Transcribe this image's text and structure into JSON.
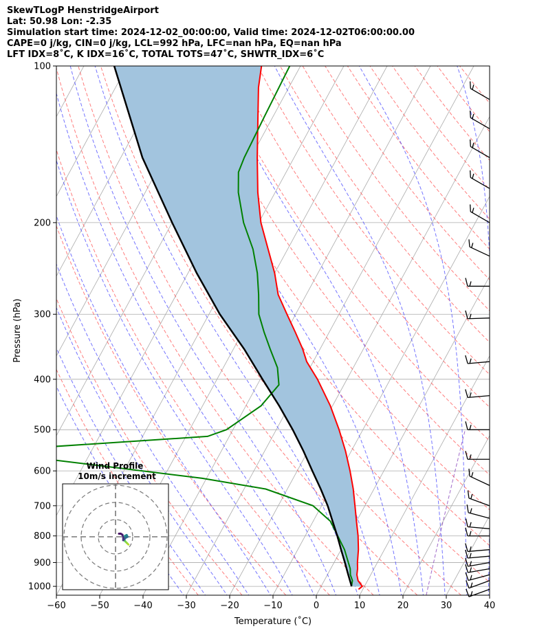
{
  "header": {
    "line1": "SkewTLogP HenstridgeAirport",
    "line2": "Lat: 50.98   Lon: -2.35",
    "line3": "Simulation start time: 2024-12-02_00:00:00, Valid time: 2024-12-02T06:00:00.00",
    "line4": "CAPE=0 j/kg, CIN=0 j/kg, LCL=992 hPa, LFC=nan hPa, EQ=nan hPa",
    "line5": "LFT IDX=8˚C, K IDX=16˚C, TOTAL TOTS=47˚C, SHWTR_IDX=6˚C"
  },
  "chart_data": {
    "type": "skew-t log-p",
    "xlabel": "Temperature (˚C)",
    "ylabel": "Pressure (hPa)",
    "xlim": [
      -60,
      40
    ],
    "ylim": [
      1040,
      100
    ],
    "x_ticks": [
      "−60",
      "−50",
      "−40",
      "−30",
      "−20",
      "−10",
      "0",
      "10",
      "20",
      "30",
      "40"
    ],
    "y_ticks": [
      100,
      200,
      300,
      400,
      500,
      600,
      700,
      800,
      900,
      1000
    ],
    "grid": true,
    "colors": {
      "temperature": "#ff0000",
      "dewpoint": "#008000",
      "parcel": "#000000",
      "cin_fill": "#a2c4de",
      "dry_adiabats": "#ff4444",
      "moist_adiabats": "#4444ff",
      "mixing_ratio": "#8844bb",
      "isotherms": "#aaaaaa"
    },
    "temperature": [
      {
        "p": 1013,
        "t": 9
      },
      {
        "p": 1000,
        "t": 9.5
      },
      {
        "p": 975,
        "t": 7.8
      },
      {
        "p": 950,
        "t": 6.8
      },
      {
        "p": 925,
        "t": 6.2
      },
      {
        "p": 900,
        "t": 5.4
      },
      {
        "p": 850,
        "t": 4.0
      },
      {
        "p": 800,
        "t": 2.2
      },
      {
        "p": 750,
        "t": 0.0
      },
      {
        "p": 700,
        "t": -2.3
      },
      {
        "p": 650,
        "t": -4.8
      },
      {
        "p": 600,
        "t": -7.8
      },
      {
        "p": 550,
        "t": -11.3
      },
      {
        "p": 500,
        "t": -15.5
      },
      {
        "p": 450,
        "t": -20.5
      },
      {
        "p": 400,
        "t": -26.8
      },
      {
        "p": 370,
        "t": -31.5
      },
      {
        "p": 350,
        "t": -34.0
      },
      {
        "p": 325,
        "t": -37.8
      },
      {
        "p": 300,
        "t": -42.0
      },
      {
        "p": 275,
        "t": -46.5
      },
      {
        "p": 250,
        "t": -50.0
      },
      {
        "p": 225,
        "t": -54.5
      },
      {
        "p": 200,
        "t": -59.5
      },
      {
        "p": 175,
        "t": -64.0
      },
      {
        "p": 150,
        "t": -68.5
      },
      {
        "p": 125,
        "t": -73.5
      },
      {
        "p": 110,
        "t": -77.0
      },
      {
        "p": 100,
        "t": -79.0
      }
    ],
    "dewpoint": [
      {
        "p": 1000,
        "t": 7.0
      },
      {
        "p": 975,
        "t": 6.5
      },
      {
        "p": 950,
        "t": 5.3
      },
      {
        "p": 925,
        "t": 4.5
      },
      {
        "p": 900,
        "t": 3.3
      },
      {
        "p": 850,
        "t": 0.8
      },
      {
        "p": 800,
        "t": -2.5
      },
      {
        "p": 750,
        "t": -6.0
      },
      {
        "p": 700,
        "t": -12.0
      },
      {
        "p": 650,
        "t": -25.0
      },
      {
        "p": 620,
        "t": -41.0
      },
      {
        "p": 550,
        "t": -95.0
      },
      {
        "p": 515,
        "t": -45.0
      },
      {
        "p": 500,
        "t": -41.5
      },
      {
        "p": 450,
        "t": -36.5
      },
      {
        "p": 410,
        "t": -35.0
      },
      {
        "p": 380,
        "t": -37.5
      },
      {
        "p": 350,
        "t": -41.5
      },
      {
        "p": 325,
        "t": -45.0
      },
      {
        "p": 300,
        "t": -48.5
      },
      {
        "p": 275,
        "t": -51.0
      },
      {
        "p": 250,
        "t": -54.0
      },
      {
        "p": 225,
        "t": -58.0
      },
      {
        "p": 200,
        "t": -63.5
      },
      {
        "p": 175,
        "t": -68.5
      },
      {
        "p": 160,
        "t": -71.0
      },
      {
        "p": 150,
        "t": -71.5
      },
      {
        "p": 125,
        "t": -72.0
      },
      {
        "p": 100,
        "t": -72.5
      }
    ],
    "parcel": [
      {
        "p": 1000,
        "t": 7.0
      },
      {
        "p": 992,
        "t": 6.7
      },
      {
        "p": 950,
        "t": 4.8
      },
      {
        "p": 900,
        "t": 2.5
      },
      {
        "p": 850,
        "t": 0.0
      },
      {
        "p": 800,
        "t": -2.6
      },
      {
        "p": 750,
        "t": -5.5
      },
      {
        "p": 700,
        "t": -8.6
      },
      {
        "p": 650,
        "t": -12.3
      },
      {
        "p": 600,
        "t": -16.5
      },
      {
        "p": 550,
        "t": -21.0
      },
      {
        "p": 500,
        "t": -26.2
      },
      {
        "p": 450,
        "t": -32.3
      },
      {
        "p": 400,
        "t": -39.5
      },
      {
        "p": 350,
        "t": -47.5
      },
      {
        "p": 300,
        "t": -57.5
      },
      {
        "p": 250,
        "t": -68.0
      },
      {
        "p": 200,
        "t": -80.0
      },
      {
        "p": 150,
        "t": -95.0
      },
      {
        "p": 100,
        "t": -113.0
      }
    ],
    "wind_barbs": [
      {
        "p": 1013,
        "speed_kt": 10,
        "dir": 250
      },
      {
        "p": 975,
        "speed_kt": 10,
        "dir": 250
      },
      {
        "p": 950,
        "speed_kt": 10,
        "dir": 255
      },
      {
        "p": 925,
        "speed_kt": 10,
        "dir": 260
      },
      {
        "p": 900,
        "speed_kt": 10,
        "dir": 260
      },
      {
        "p": 875,
        "speed_kt": 10,
        "dir": 265
      },
      {
        "p": 850,
        "speed_kt": 10,
        "dir": 265
      },
      {
        "p": 800,
        "speed_kt": 10,
        "dir": 270
      },
      {
        "p": 775,
        "speed_kt": 10,
        "dir": 275
      },
      {
        "p": 740,
        "speed_kt": 10,
        "dir": 285
      },
      {
        "p": 700,
        "speed_kt": 10,
        "dir": 290
      },
      {
        "p": 640,
        "speed_kt": 10,
        "dir": 295
      },
      {
        "p": 570,
        "speed_kt": 10,
        "dir": 270
      },
      {
        "p": 500,
        "speed_kt": 10,
        "dir": 270
      },
      {
        "p": 430,
        "speed_kt": 10,
        "dir": 265
      },
      {
        "p": 370,
        "speed_kt": 10,
        "dir": 265
      },
      {
        "p": 305,
        "speed_kt": 10,
        "dir": 268
      },
      {
        "p": 265,
        "speed_kt": 10,
        "dir": 270
      },
      {
        "p": 232,
        "speed_kt": 10,
        "dir": 295
      },
      {
        "p": 200,
        "speed_kt": 10,
        "dir": 300
      },
      {
        "p": 172,
        "speed_kt": 10,
        "dir": 300
      },
      {
        "p": 150,
        "speed_kt": 10,
        "dir": 300
      },
      {
        "p": 132,
        "speed_kt": 10,
        "dir": 300
      },
      {
        "p": 116,
        "speed_kt": 10,
        "dir": 300
      }
    ],
    "hodograph": {
      "title": "Wind Profile",
      "subtitle": "10m/s increment",
      "rings_ms": [
        10,
        20,
        30
      ],
      "points": [
        {
          "u": 7.5,
          "v": -4.5
        },
        {
          "u": 6.5,
          "v": -3.5
        },
        {
          "u": 5.5,
          "v": -2.5
        },
        {
          "u": 5.0,
          "v": -1.0
        },
        {
          "u": 5.5,
          "v": 0.5
        },
        {
          "u": 6.5,
          "v": 1.0
        },
        {
          "u": 7.0,
          "v": 0.0
        },
        {
          "u": 6.0,
          "v": -0.5
        },
        {
          "u": 5.0,
          "v": -1.5
        },
        {
          "u": 4.5,
          "v": -2.0
        },
        {
          "u": 4.5,
          "v": -0.5
        },
        {
          "u": 4.0,
          "v": 1.2
        },
        {
          "u": 3.0,
          "v": 1.8
        },
        {
          "u": 2.0,
          "v": 1.8
        }
      ]
    }
  }
}
